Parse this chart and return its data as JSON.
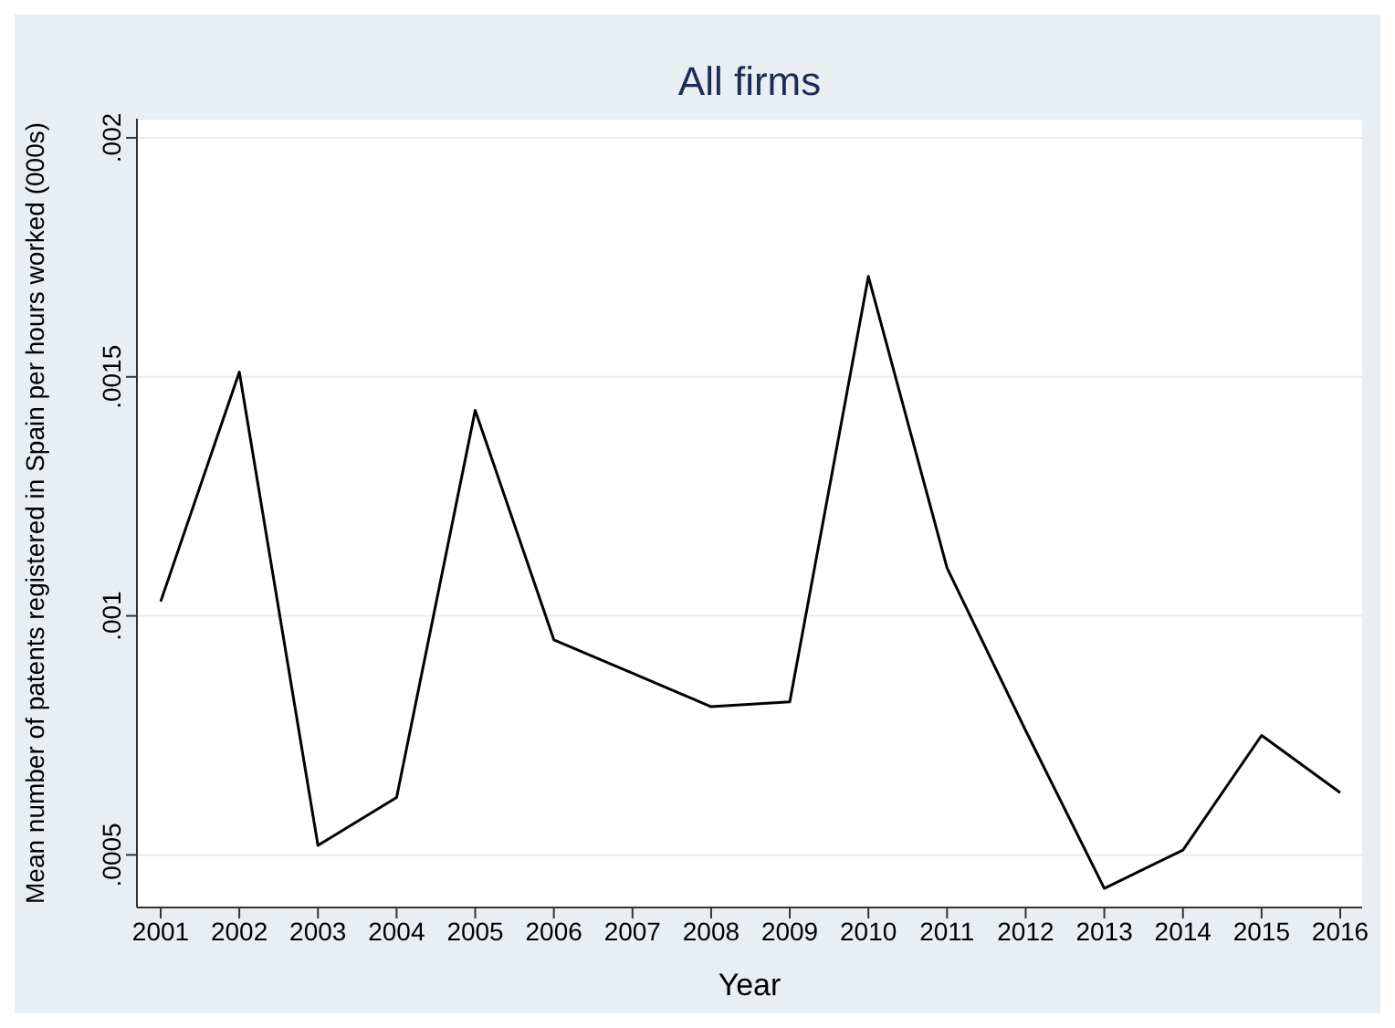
{
  "chart_data": {
    "type": "line",
    "title": "All firms",
    "xlabel": "Year",
    "ylabel": "Mean number of patents registered in Spain per hours worked (000s)",
    "categories": [
      "2001",
      "2002",
      "2003",
      "2004",
      "2005",
      "2006",
      "2007",
      "2008",
      "2009",
      "2010",
      "2011",
      "2012",
      "2013",
      "2014",
      "2015",
      "2016"
    ],
    "series": [
      {
        "color": "#000000",
        "values": [
          0.00103,
          0.00151,
          0.00052,
          0.00062,
          0.00143,
          0.00095,
          0.00088,
          0.00081,
          0.00082,
          0.00171,
          0.0011,
          0.00076,
          0.00043,
          0.00051,
          0.00075,
          0.00063
        ]
      }
    ],
    "ylim": [
      0.00039,
      0.00204
    ],
    "yticks": [
      {
        "value": 0.0005,
        "label": ".0005"
      },
      {
        "value": 0.001,
        "label": ".001"
      },
      {
        "value": 0.0015,
        "label": ".0015"
      },
      {
        "value": 0.002,
        "label": ".002"
      }
    ],
    "grid": "y",
    "legend": false,
    "marker": "none",
    "line_style": "solid"
  }
}
